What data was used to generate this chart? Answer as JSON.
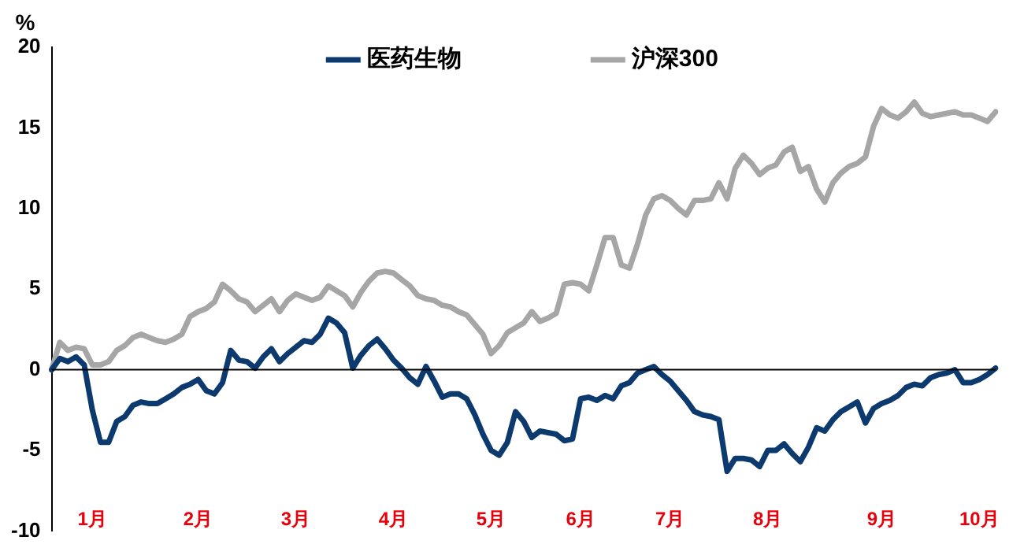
{
  "chart_data": {
    "type": "line",
    "ylabel": "%",
    "categories": [
      null,
      null,
      null,
      null,
      null,
      "1月",
      null,
      null,
      null,
      null,
      null,
      null,
      null,
      null,
      null,
      null,
      null,
      null,
      "2月",
      null,
      null,
      null,
      null,
      null,
      null,
      null,
      null,
      null,
      null,
      null,
      "3月",
      null,
      null,
      null,
      null,
      null,
      null,
      null,
      null,
      null,
      null,
      null,
      "4月",
      null,
      null,
      null,
      null,
      null,
      null,
      null,
      null,
      null,
      null,
      null,
      "5月",
      null,
      null,
      null,
      null,
      null,
      null,
      null,
      null,
      null,
      null,
      "6月",
      null,
      null,
      null,
      null,
      null,
      null,
      null,
      null,
      null,
      null,
      "7月",
      null,
      null,
      null,
      null,
      null,
      null,
      null,
      null,
      null,
      null,
      null,
      "8月",
      null,
      null,
      null,
      null,
      null,
      null,
      null,
      null,
      null,
      null,
      null,
      null,
      null,
      "9月",
      null,
      null,
      null,
      null,
      null,
      null,
      null,
      null,
      null,
      null,
      null,
      "10月",
      null,
      null
    ],
    "series": [
      {
        "name": "医药生物",
        "color": "#0d3a6e",
        "values": [
          0,
          0.7,
          0.5,
          0.8,
          0.3,
          -2.5,
          -4.5,
          -4.5,
          -3.2,
          -2.9,
          -2.2,
          -2.0,
          -2.1,
          -2.1,
          -1.8,
          -1.5,
          -1.1,
          -0.9,
          -0.6,
          -1.3,
          -1.5,
          -0.8,
          1.2,
          0.6,
          0.5,
          0.1,
          0.8,
          1.3,
          0.5,
          1.0,
          1.4,
          1.8,
          1.7,
          2.2,
          3.2,
          2.9,
          2.3,
          0.1,
          0.9,
          1.5,
          1.9,
          1.3,
          0.6,
          0.1,
          -0.5,
          -0.9,
          0.2,
          -0.7,
          -1.7,
          -1.5,
          -1.5,
          -1.8,
          -2.8,
          -4.0,
          -5.0,
          -5.3,
          -4.5,
          -2.6,
          -3.2,
          -4.2,
          -3.8,
          -3.9,
          -4.0,
          -4.4,
          -4.3,
          -1.8,
          -1.7,
          -1.9,
          -1.6,
          -1.8,
          -1.0,
          -0.8,
          -0.2,
          0.0,
          0.2,
          -0.3,
          -0.7,
          -1.3,
          -1.9,
          -2.6,
          -2.8,
          -2.9,
          -3.1,
          -6.3,
          -5.5,
          -5.5,
          -5.6,
          -6.0,
          -5.0,
          -5.0,
          -4.6,
          -5.2,
          -5.7,
          -4.8,
          -3.6,
          -3.8,
          -3.1,
          -2.6,
          -2.3,
          -2.0,
          -3.3,
          -2.4,
          -2.1,
          -1.9,
          -1.6,
          -1.1,
          -0.9,
          -1.0,
          -0.5,
          -0.3,
          -0.2,
          0.0,
          -0.8,
          -0.8,
          -0.6,
          -0.3,
          0.1
        ]
      },
      {
        "name": "沪深300",
        "color": "#a6a6a6",
        "values": [
          0,
          1.7,
          1.2,
          1.4,
          1.3,
          0.3,
          0.3,
          0.5,
          1.2,
          1.5,
          2.0,
          2.2,
          2.0,
          1.8,
          1.7,
          1.9,
          2.2,
          3.3,
          3.6,
          3.8,
          4.2,
          5.3,
          4.9,
          4.4,
          4.2,
          3.6,
          4.0,
          4.4,
          3.6,
          4.3,
          4.7,
          4.5,
          4.3,
          4.5,
          5.2,
          4.9,
          4.6,
          3.9,
          4.8,
          5.5,
          6.0,
          6.1,
          6.0,
          5.6,
          5.2,
          4.6,
          4.4,
          4.3,
          4.0,
          3.9,
          3.6,
          3.4,
          2.8,
          2.2,
          1.0,
          1.5,
          2.3,
          2.6,
          2.9,
          3.6,
          3.0,
          3.2,
          3.5,
          5.3,
          5.4,
          5.3,
          4.9,
          6.5,
          8.2,
          8.2,
          6.5,
          6.3,
          7.8,
          9.6,
          10.6,
          10.8,
          10.5,
          10.0,
          9.6,
          10.5,
          10.5,
          10.6,
          11.6,
          10.6,
          12.5,
          13.3,
          12.8,
          12.1,
          12.5,
          12.7,
          13.5,
          13.8,
          12.3,
          12.6,
          11.2,
          10.4,
          11.6,
          12.2,
          12.6,
          12.8,
          13.2,
          15.1,
          16.2,
          15.8,
          15.6,
          16.0,
          16.6,
          15.9,
          15.7,
          15.8,
          15.9,
          16.0,
          15.8,
          15.8,
          15.6,
          15.4,
          16.0
        ]
      }
    ],
    "ylim": [
      -10,
      20
    ],
    "yticks": [
      -10,
      -5,
      0,
      5,
      10,
      15,
      20
    ],
    "grid": false,
    "legend": "top",
    "marker": "none",
    "line_style": "solid",
    "ref_lines": [
      {
        "axis": "y",
        "value": 0,
        "color": "#000000"
      }
    ]
  }
}
